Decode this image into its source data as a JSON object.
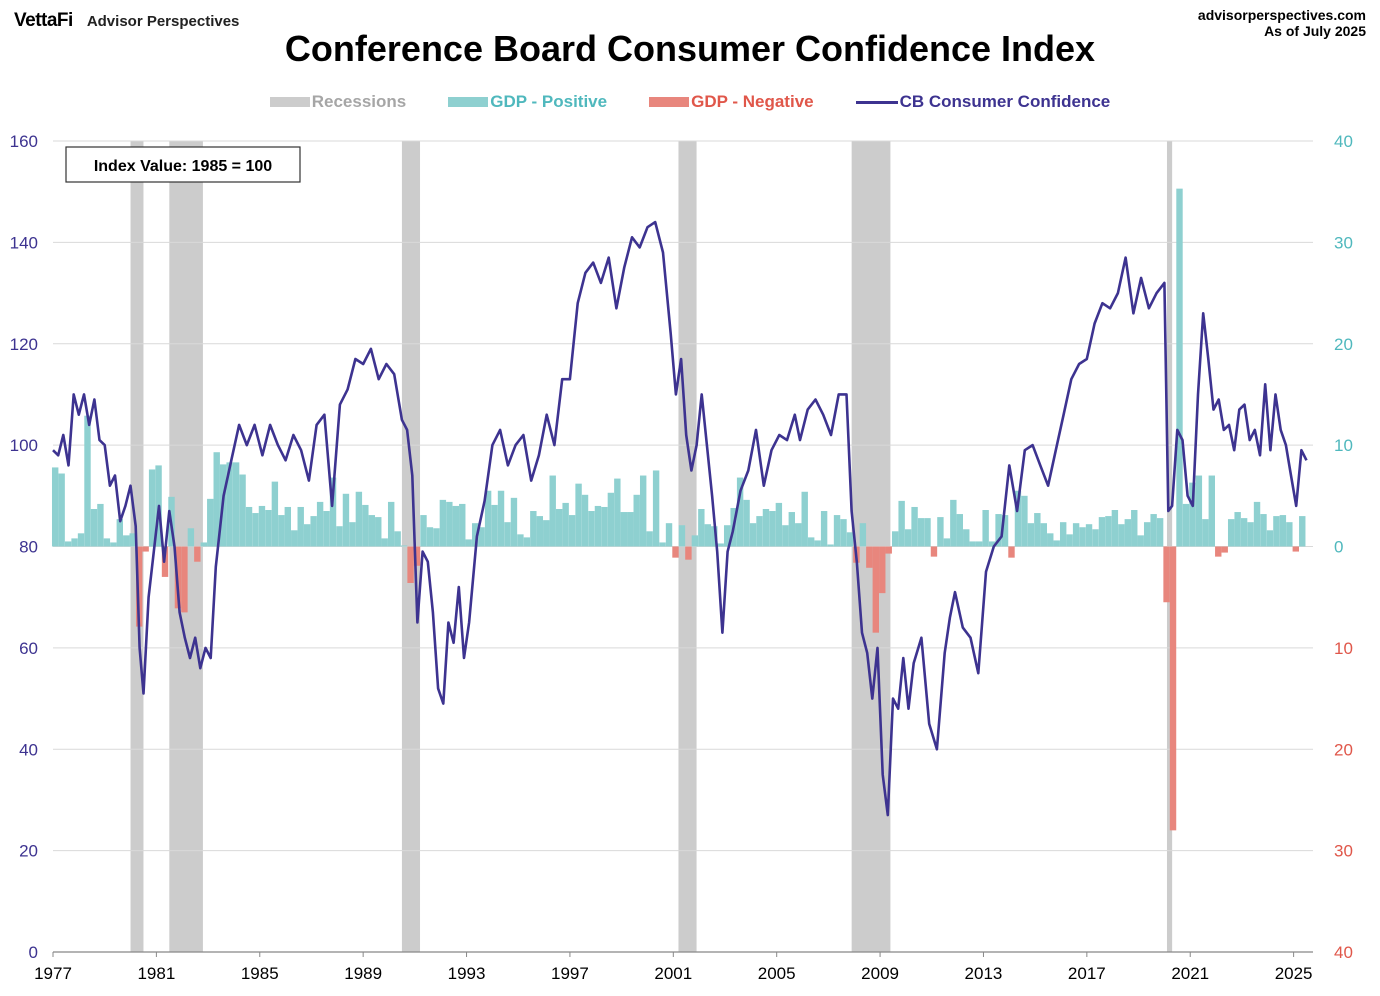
{
  "header": {
    "brand": "VettaFi",
    "brand_sub": "Advisor Perspectives",
    "source": "advisorperspectives.com",
    "as_of": "As of July 2025"
  },
  "colors": {
    "confidence": "#3d3390",
    "gdp_positive": "#8ed0d0",
    "gdp_negative": "#e8867d",
    "recession": "#cccccc",
    "right_axis_positive": "#4fb8bd",
    "right_axis_negative": "#e0574a"
  },
  "chart_data": {
    "type": "line",
    "title": "Conference Board Consumer Confidence Index",
    "annotation": "Index Value: 1985 = 100",
    "legend": {
      "recessions": "Recessions",
      "gdp_positive": "GDP - Positive",
      "gdp_negative": "GDP - Negative",
      "confidence": "CB Consumer Confidence"
    },
    "legend_position": "top",
    "x_range": [
      1977,
      2025.75
    ],
    "x_ticks": [
      "1977",
      "1981",
      "1985",
      "1989",
      "1993",
      "1997",
      "2001",
      "2005",
      "2009",
      "2013",
      "2017",
      "2021",
      "2025"
    ],
    "left_axis": {
      "range": [
        0,
        160
      ],
      "ticks": [
        "0",
        "20",
        "40",
        "60",
        "80",
        "100",
        "120",
        "140",
        "160"
      ]
    },
    "right_axis": {
      "range": [
        -40,
        40
      ],
      "ticks": [
        "40",
        "30",
        "20",
        "10",
        "0",
        "10",
        "20",
        "30",
        "40"
      ],
      "positive_ticks": [
        "40",
        "30",
        "20",
        "10"
      ],
      "zero_tick": "0",
      "negative_ticks": [
        "10",
        "20",
        "30",
        "40"
      ]
    },
    "grid": true,
    "recessions": [
      [
        1980.0,
        1980.5
      ],
      [
        1981.5,
        1982.8
      ],
      [
        1990.5,
        1991.2
      ],
      [
        2001.2,
        2001.9
      ],
      [
        2007.9,
        2009.4
      ],
      [
        2020.1,
        2020.3
      ]
    ],
    "series": [
      {
        "name": "CB Consumer Confidence",
        "axis": "left",
        "x": [
          1977.0,
          1977.2,
          1977.4,
          1977.6,
          1977.8,
          1978.0,
          1978.2,
          1978.4,
          1978.6,
          1978.8,
          1979.0,
          1979.2,
          1979.4,
          1979.6,
          1979.8,
          1980.0,
          1980.2,
          1980.35,
          1980.5,
          1980.7,
          1980.9,
          1981.1,
          1981.3,
          1981.5,
          1981.7,
          1981.9,
          1982.1,
          1982.3,
          1982.5,
          1982.7,
          1982.9,
          1983.1,
          1983.3,
          1983.6,
          1983.9,
          1984.2,
          1984.5,
          1984.8,
          1985.1,
          1985.4,
          1985.7,
          1986.0,
          1986.3,
          1986.6,
          1986.9,
          1987.2,
          1987.5,
          1987.8,
          1988.1,
          1988.4,
          1988.7,
          1989.0,
          1989.3,
          1989.6,
          1989.9,
          1990.2,
          1990.5,
          1990.7,
          1990.9,
          1991.1,
          1991.3,
          1991.5,
          1991.7,
          1991.9,
          1992.1,
          1992.3,
          1992.5,
          1992.7,
          1992.9,
          1993.1,
          1993.4,
          1993.7,
          1994.0,
          1994.3,
          1994.6,
          1994.9,
          1995.2,
          1995.5,
          1995.8,
          1996.1,
          1996.4,
          1996.7,
          1997.0,
          1997.3,
          1997.6,
          1997.9,
          1998.2,
          1998.5,
          1998.8,
          1999.1,
          1999.4,
          1999.7,
          2000.0,
          2000.3,
          2000.6,
          2000.9,
          2001.1,
          2001.3,
          2001.5,
          2001.7,
          2001.9,
          2002.1,
          2002.3,
          2002.5,
          2002.7,
          2002.9,
          2003.1,
          2003.3,
          2003.6,
          2003.9,
          2004.2,
          2004.5,
          2004.8,
          2005.1,
          2005.4,
          2005.7,
          2005.9,
          2006.2,
          2006.5,
          2006.8,
          2007.1,
          2007.4,
          2007.7,
          2007.9,
          2008.1,
          2008.3,
          2008.5,
          2008.7,
          2008.9,
          2009.1,
          2009.3,
          2009.5,
          2009.7,
          2009.9,
          2010.1,
          2010.3,
          2010.6,
          2010.9,
          2011.2,
          2011.5,
          2011.7,
          2011.9,
          2012.2,
          2012.5,
          2012.8,
          2013.1,
          2013.4,
          2013.7,
          2014.0,
          2014.3,
          2014.6,
          2014.9,
          2015.2,
          2015.5,
          2015.8,
          2016.1,
          2016.4,
          2016.7,
          2017.0,
          2017.3,
          2017.6,
          2017.9,
          2018.2,
          2018.5,
          2018.8,
          2019.1,
          2019.4,
          2019.7,
          2020.0,
          2020.15,
          2020.3,
          2020.5,
          2020.7,
          2020.9,
          2021.1,
          2021.3,
          2021.5,
          2021.7,
          2021.9,
          2022.1,
          2022.3,
          2022.5,
          2022.7,
          2022.9,
          2023.1,
          2023.3,
          2023.5,
          2023.7,
          2023.9,
          2024.1,
          2024.3,
          2024.5,
          2024.7,
          2024.9,
          2025.1,
          2025.3,
          2025.5
        ],
        "values": [
          99,
          98,
          102,
          96,
          110,
          106,
          110,
          104,
          109,
          101,
          100,
          92,
          94,
          85,
          88,
          92,
          84,
          60,
          51,
          70,
          79,
          88,
          77,
          87,
          80,
          67,
          62,
          58,
          62,
          56,
          60,
          58,
          76,
          90,
          97,
          104,
          100,
          104,
          98,
          104,
          100,
          97,
          102,
          99,
          93,
          104,
          106,
          88,
          108,
          111,
          117,
          116,
          119,
          113,
          116,
          114,
          105,
          103,
          94,
          65,
          79,
          77,
          67,
          52,
          49,
          65,
          61,
          72,
          58,
          65,
          82,
          89,
          100,
          103,
          96,
          100,
          102,
          93,
          98,
          106,
          100,
          113,
          113,
          128,
          134,
          136,
          132,
          137,
          127,
          135,
          141,
          139,
          143,
          144,
          138,
          122,
          110,
          117,
          102,
          95,
          100,
          110,
          100,
          90,
          79,
          63,
          79,
          83,
          91,
          95,
          103,
          92,
          99,
          102,
          101,
          106,
          101,
          107,
          109,
          106,
          102,
          110,
          110,
          87,
          77,
          63,
          59,
          50,
          60,
          35,
          27,
          50,
          48,
          58,
          48,
          57,
          62,
          45,
          40,
          59,
          66,
          71,
          64,
          62,
          55,
          75,
          80,
          82,
          96,
          87,
          99,
          100,
          96,
          92,
          99,
          106,
          113,
          116,
          117,
          124,
          128,
          127,
          130,
          137,
          126,
          133,
          127,
          130,
          132,
          87,
          88,
          103,
          101,
          90,
          88,
          110,
          126,
          117,
          107,
          109,
          103,
          104,
          99,
          107,
          108,
          101,
          103,
          98,
          112,
          99,
          110,
          103,
          100,
          94,
          88,
          99,
          97
        ],
        "color": "#3d3390"
      },
      {
        "name": "GDP - Positive / GDP - Negative",
        "axis": "right",
        "type": "bar",
        "x": [
          1977.1,
          1977.35,
          1977.6,
          1977.85,
          1978.1,
          1978.35,
          1978.6,
          1978.85,
          1979.1,
          1979.35,
          1979.6,
          1979.85,
          1980.1,
          1980.35,
          1980.6,
          1980.85,
          1981.1,
          1981.35,
          1981.6,
          1981.85,
          1982.1,
          1982.35,
          1982.6,
          1982.85,
          1983.1,
          1983.35,
          1983.6,
          1983.85,
          1984.1,
          1984.35,
          1984.6,
          1984.85,
          1985.1,
          1985.35,
          1985.6,
          1985.85,
          1986.1,
          1986.35,
          1986.6,
          1986.85,
          1987.1,
          1987.35,
          1987.6,
          1987.85,
          1988.1,
          1988.35,
          1988.6,
          1988.85,
          1989.1,
          1989.35,
          1989.6,
          1989.85,
          1990.1,
          1990.35,
          1990.6,
          1990.85,
          1991.1,
          1991.35,
          1991.6,
          1991.85,
          1992.1,
          1992.35,
          1992.6,
          1992.85,
          1993.1,
          1993.35,
          1993.6,
          1993.85,
          1994.1,
          1994.35,
          1994.6,
          1994.85,
          1995.1,
          1995.35,
          1995.6,
          1995.85,
          1996.1,
          1996.35,
          1996.6,
          1996.85,
          1997.1,
          1997.35,
          1997.6,
          1997.85,
          1998.1,
          1998.35,
          1998.6,
          1998.85,
          1999.1,
          1999.35,
          1999.6,
          1999.85,
          2000.1,
          2000.35,
          2000.6,
          2000.85,
          2001.1,
          2001.35,
          2001.6,
          2001.85,
          2002.1,
          2002.35,
          2002.6,
          2002.85,
          2003.1,
          2003.35,
          2003.6,
          2003.85,
          2004.1,
          2004.35,
          2004.6,
          2004.85,
          2005.1,
          2005.35,
          2005.6,
          2005.85,
          2006.1,
          2006.35,
          2006.6,
          2006.85,
          2007.1,
          2007.35,
          2007.6,
          2007.85,
          2008.1,
          2008.35,
          2008.6,
          2008.85,
          2009.1,
          2009.35,
          2009.6,
          2009.85,
          2010.1,
          2010.35,
          2010.6,
          2010.85,
          2011.1,
          2011.35,
          2011.6,
          2011.85,
          2012.1,
          2012.35,
          2012.6,
          2012.85,
          2013.1,
          2013.35,
          2013.6,
          2013.85,
          2014.1,
          2014.35,
          2014.6,
          2014.85,
          2015.1,
          2015.35,
          2015.6,
          2015.85,
          2016.1,
          2016.35,
          2016.6,
          2016.85,
          2017.1,
          2017.35,
          2017.6,
          2017.85,
          2018.1,
          2018.35,
          2018.6,
          2018.85,
          2019.1,
          2019.35,
          2019.6,
          2019.85,
          2020.1,
          2020.35,
          2020.6,
          2020.85,
          2021.1,
          2021.35,
          2021.6,
          2021.85,
          2022.1,
          2022.35,
          2022.6,
          2022.85,
          2023.1,
          2023.35,
          2023.6,
          2023.85,
          2024.1,
          2024.35,
          2024.6,
          2024.85,
          2025.1,
          2025.35
        ],
        "values": [
          7.8,
          7.2,
          0.5,
          0.8,
          1.3,
          12.9,
          3.7,
          4.2,
          0.8,
          0.4,
          2.7,
          1.1,
          1.3,
          -7.9,
          -0.5,
          7.6,
          8.0,
          -3.0,
          4.9,
          -6.1,
          -6.5,
          1.8,
          -1.5,
          0.4,
          4.7,
          9.3,
          8.1,
          8.3,
          8.3,
          7.1,
          3.9,
          3.3,
          4.0,
          3.6,
          6.4,
          3.1,
          3.9,
          1.6,
          3.9,
          2.2,
          3.0,
          4.4,
          3.5,
          6.8,
          2.0,
          5.2,
          2.4,
          5.4,
          4.1,
          3.1,
          2.9,
          0.8,
          4.4,
          1.5,
          0.1,
          -3.6,
          -1.9,
          3.1,
          1.9,
          1.8,
          4.6,
          4.4,
          4.0,
          4.2,
          0.7,
          2.3,
          1.9,
          5.5,
          4.1,
          5.5,
          2.4,
          4.8,
          1.2,
          0.9,
          3.5,
          3.0,
          2.6,
          7.0,
          3.7,
          4.3,
          3.1,
          6.2,
          5.1,
          3.5,
          4.0,
          3.9,
          5.3,
          6.7,
          3.4,
          3.4,
          5.1,
          7.0,
          1.5,
          7.5,
          0.4,
          2.3,
          -1.1,
          2.1,
          -1.3,
          1.1,
          3.7,
          2.2,
          2.0,
          0.3,
          2.1,
          3.8,
          6.8,
          4.6,
          2.3,
          3.0,
          3.7,
          3.5,
          4.3,
          2.1,
          3.4,
          2.3,
          5.4,
          0.9,
          0.6,
          3.5,
          0.2,
          3.1,
          2.7,
          1.4,
          -1.6,
          2.3,
          -2.1,
          -8.5,
          -4.6,
          -0.7,
          1.5,
          4.5,
          1.7,
          3.9,
          2.8,
          2.8,
          -1.0,
          2.9,
          0.8,
          4.6,
          3.2,
          1.7,
          0.5,
          0.5,
          3.6,
          0.5,
          3.2,
          3.1,
          -1.1,
          5.5,
          5.0,
          2.3,
          3.3,
          2.3,
          1.3,
          0.6,
          2.4,
          1.2,
          2.3,
          1.9,
          2.2,
          1.7,
          2.9,
          3.0,
          3.6,
          2.2,
          2.7,
          3.6,
          1.1,
          2.4,
          3.2,
          2.8,
          -5.5,
          -28.0,
          35.3,
          4.2,
          6.3,
          7.0,
          2.7,
          7.0,
          -1.0,
          -0.6,
          2.7,
          3.4,
          2.8,
          2.4,
          4.4,
          3.2,
          1.6,
          3.0,
          3.1,
          2.4,
          -0.5,
          3.0
        ]
      }
    ]
  }
}
